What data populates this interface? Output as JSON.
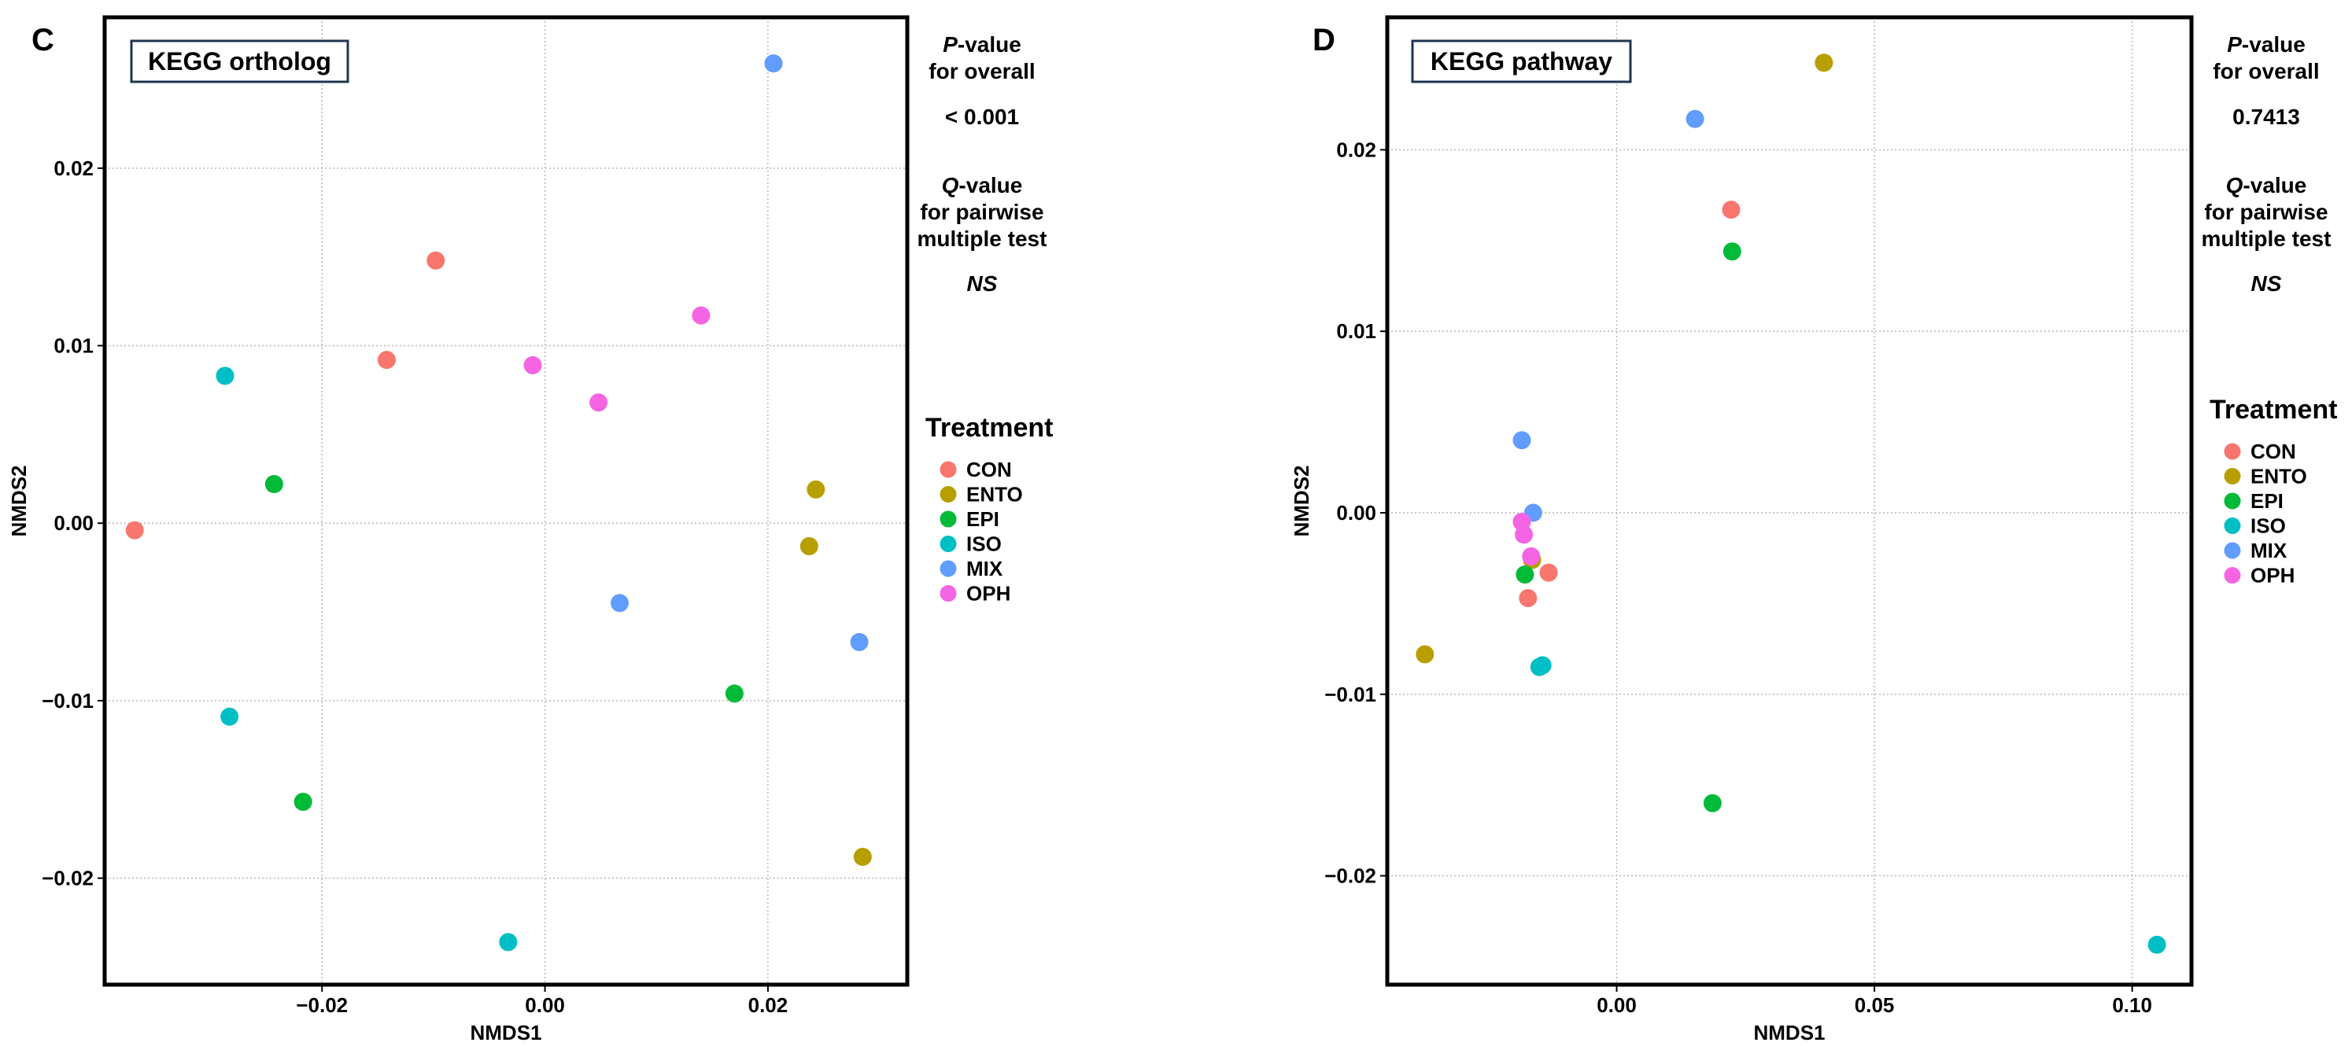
{
  "chart_data": [
    {
      "type": "scatter",
      "panel_letter": "C",
      "title": "KEGG ortholog",
      "xlabel": "NMDS1",
      "ylabel": "NMDS2",
      "xlim": [
        -0.0395,
        0.0325
      ],
      "ylim": [
        -0.026,
        0.0285
      ],
      "xticks": [
        -0.02,
        0.0,
        0.02
      ],
      "xtick_labels": [
        "−0.02",
        "0.00",
        "0.02"
      ],
      "yticks": [
        -0.02,
        -0.01,
        0.0,
        0.01,
        0.02
      ],
      "ytick_labels": [
        "−0.02",
        "−0.01",
        "0.00",
        "0.01",
        "0.02"
      ],
      "grid": true,
      "p_label_italic": "P",
      "p_label_rest": "-value",
      "p_label_line2": "for overall",
      "p_value": "< 0.001",
      "p_value_color": "#ff0000",
      "q_label_italic": "Q",
      "q_label_rest": "-value",
      "q_label_line2": "for pairwise",
      "q_label_line3": "multiple test",
      "q_value": "NS",
      "legend_title": "Treatment",
      "series": [
        {
          "name": "CON",
          "color": "#F8766D",
          "points": [
            [
              -0.0098,
              0.0148
            ],
            [
              -0.0142,
              0.0092
            ],
            [
              -0.0368,
              -0.0004
            ]
          ]
        },
        {
          "name": "ENTO",
          "color": "#B79F00",
          "points": [
            [
              0.0243,
              0.0019
            ],
            [
              0.0237,
              -0.0013
            ],
            [
              0.0285,
              -0.0188
            ]
          ]
        },
        {
          "name": "EPI",
          "color": "#00BA38",
          "points": [
            [
              -0.0243,
              0.0022
            ],
            [
              0.017,
              -0.0096
            ],
            [
              -0.0217,
              -0.0157
            ]
          ]
        },
        {
          "name": "ISO",
          "color": "#00BFC4",
          "points": [
            [
              -0.0287,
              0.0083
            ],
            [
              -0.0283,
              -0.0109
            ],
            [
              -0.0033,
              -0.0236
            ]
          ]
        },
        {
          "name": "MIX",
          "color": "#619CFF",
          "points": [
            [
              0.0205,
              0.0259
            ],
            [
              0.0067,
              -0.0045
            ],
            [
              0.0282,
              -0.0067
            ]
          ]
        },
        {
          "name": "OPH",
          "color": "#F564E3",
          "points": [
            [
              0.014,
              0.0117
            ],
            [
              -0.0011,
              0.0089
            ],
            [
              0.0048,
              0.0068
            ]
          ]
        }
      ]
    },
    {
      "type": "scatter",
      "panel_letter": "D",
      "title": "KEGG pathway",
      "xlabel": "NMDS1",
      "ylabel": "NMDS2",
      "xlim": [
        -0.0445,
        0.1115
      ],
      "ylim": [
        -0.026,
        0.0273
      ],
      "xticks": [
        0.0,
        0.05,
        0.1
      ],
      "xtick_labels": [
        "0.00",
        "0.05",
        "0.10"
      ],
      "yticks": [
        -0.02,
        -0.01,
        0.0,
        0.01,
        0.02
      ],
      "ytick_labels": [
        "−0.02",
        "−0.01",
        "0.00",
        "0.01",
        "0.02"
      ],
      "grid": true,
      "p_label_italic": "P",
      "p_label_rest": "-value",
      "p_label_line2": "for overall",
      "p_value": "0.7413",
      "p_value_color": "#000000",
      "q_label_italic": "Q",
      "q_label_rest": "-value",
      "q_label_line2": "for pairwise",
      "q_label_line3": "multiple test",
      "q_value": "NS",
      "legend_title": "Treatment",
      "series": [
        {
          "name": "CON",
          "color": "#F8766D",
          "points": [
            [
              0.0222,
              0.0167
            ],
            [
              -0.0132,
              -0.0033
            ],
            [
              -0.0172,
              -0.0047
            ]
          ]
        },
        {
          "name": "ENTO",
          "color": "#B79F00",
          "points": [
            [
              0.0402,
              0.0248
            ],
            [
              -0.0372,
              -0.0078
            ],
            [
              -0.0164,
              -0.0026
            ]
          ]
        },
        {
          "name": "EPI",
          "color": "#00BA38",
          "points": [
            [
              0.0224,
              0.0144
            ],
            [
              -0.0178,
              -0.0034
            ],
            [
              0.0186,
              -0.016
            ]
          ]
        },
        {
          "name": "ISO",
          "color": "#00BFC4",
          "points": [
            [
              0.1048,
              -0.0238
            ],
            [
              -0.015,
              -0.0085
            ],
            [
              -0.0144,
              -0.0084
            ]
          ]
        },
        {
          "name": "MIX",
          "color": "#619CFF",
          "points": [
            [
              0.0152,
              0.0217
            ],
            [
              -0.0184,
              0.004
            ],
            [
              -0.0162,
              0.0
            ]
          ]
        },
        {
          "name": "OPH",
          "color": "#F564E3",
          "points": [
            [
              -0.0184,
              -0.0005
            ],
            [
              -0.018,
              -0.0012
            ],
            [
              -0.0166,
              -0.0024
            ]
          ]
        }
      ]
    }
  ]
}
